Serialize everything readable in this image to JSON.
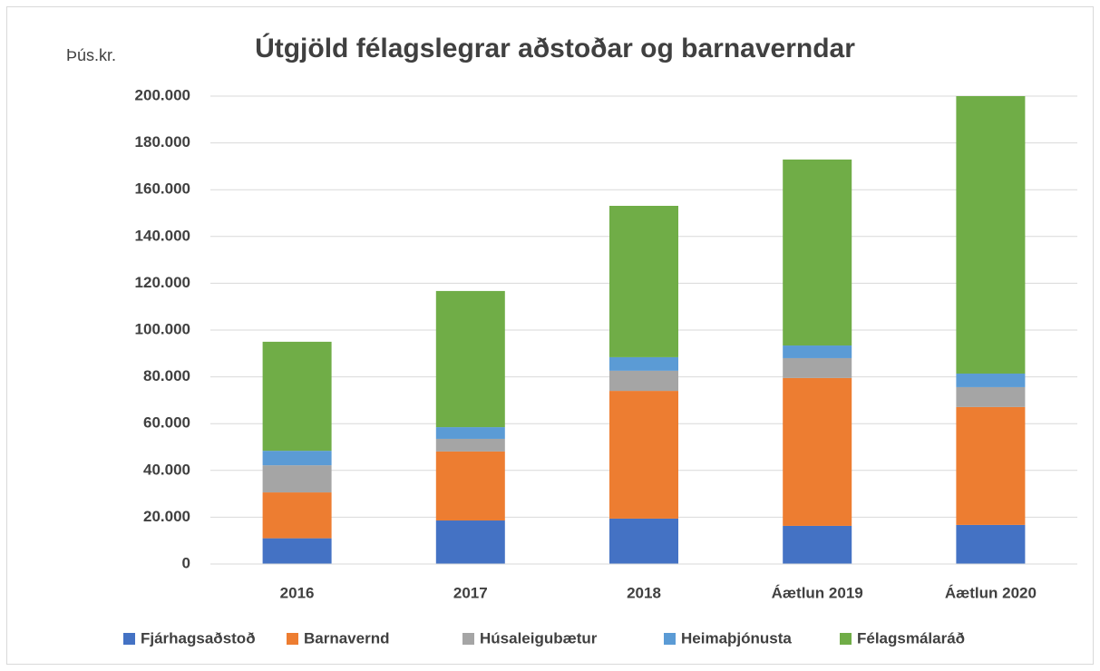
{
  "chart_data": {
    "type": "stacked_bar",
    "title": "Útgjöld félagslegrar aðstoðar og barnaverndar",
    "y_label": "Þús.kr.",
    "categories": [
      "2016",
      "2017",
      "2018",
      "Áætlun 2019",
      "Áætlun 2020"
    ],
    "series": [
      {
        "name": "Fjárhagsaðstoð",
        "color": "#4472c4",
        "values": [
          11000,
          18600,
          19400,
          16300,
          16700
        ]
      },
      {
        "name": "Barnavernd",
        "color": "#ed7d31",
        "values": [
          19600,
          29500,
          54600,
          63200,
          50400
        ]
      },
      {
        "name": "Húsaleigubætur",
        "color": "#a5a5a5",
        "values": [
          11600,
          5400,
          8600,
          8500,
          8500
        ]
      },
      {
        "name": "Heimaþjónusta",
        "color": "#5b9bd5",
        "values": [
          6200,
          5000,
          5800,
          5400,
          5800
        ]
      },
      {
        "name": "Félagsmálaráð",
        "color": "#70ad47",
        "values": [
          46600,
          58200,
          64700,
          79500,
          118600
        ]
      }
    ],
    "ylim": [
      0,
      200000
    ],
    "yticks": [
      0,
      {
        "value": 20000,
        "label": "20.000"
      },
      {
        "value": 40000,
        "label": "40.000"
      },
      {
        "value": 60000,
        "label": "60.000"
      },
      {
        "value": 80000,
        "label": "80.000"
      },
      {
        "value": 100000,
        "label": "100.000"
      },
      {
        "value": 120000,
        "label": "120.000"
      },
      {
        "value": 140000,
        "label": "140.000"
      },
      {
        "value": 160000,
        "label": "160.000"
      },
      {
        "value": 180000,
        "label": "180.000"
      },
      {
        "value": 200000,
        "label": "200.000"
      }
    ],
    "grid": true,
    "legend": "bottom"
  }
}
